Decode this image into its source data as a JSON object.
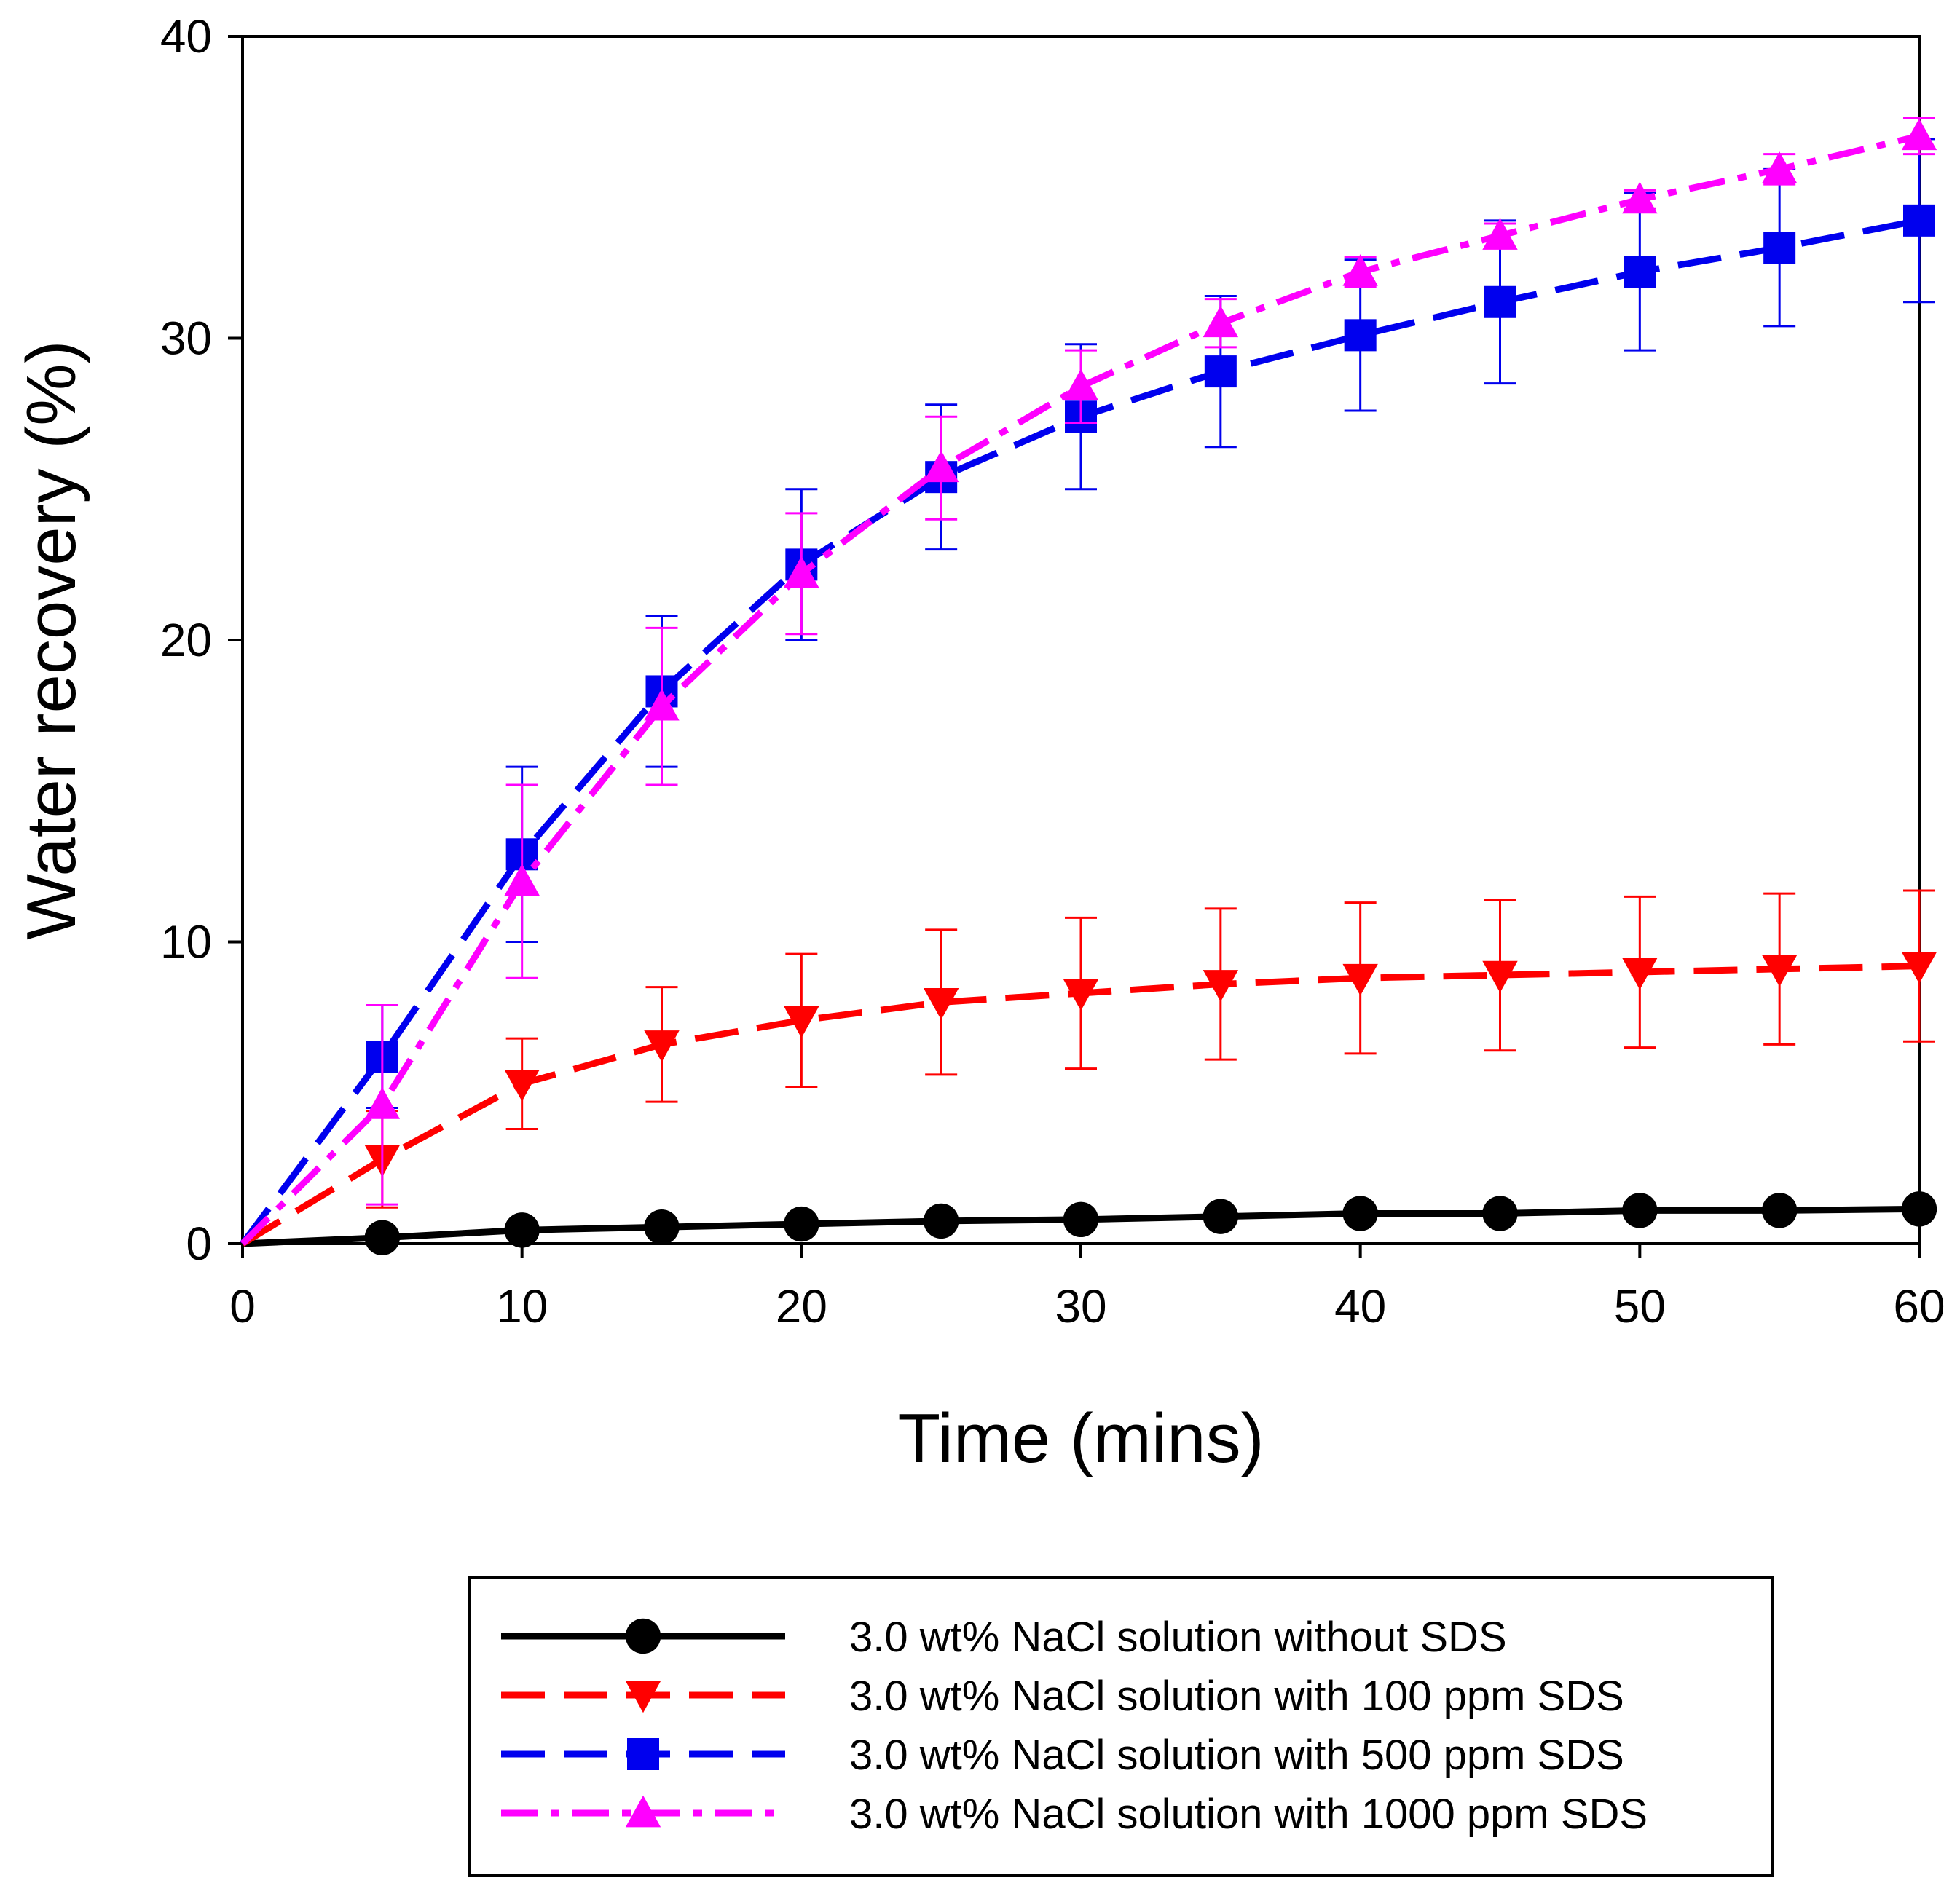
{
  "chart_data": {
    "type": "line",
    "title": "",
    "xlabel": "Time (mins)",
    "ylabel": "Water recovery (%)",
    "xlim": [
      0,
      60
    ],
    "ylim": [
      0,
      40
    ],
    "xticks": [
      0,
      10,
      20,
      30,
      40,
      50,
      60
    ],
    "yticks": [
      0,
      10,
      20,
      30,
      40
    ],
    "grid": false,
    "legend_position": "bottom",
    "x": [
      0,
      5,
      10,
      15,
      20,
      25,
      30,
      35,
      40,
      45,
      50,
      55,
      60
    ],
    "series": [
      {
        "name": "3.0 wt% NaCl solution without SDS",
        "color": "#000000",
        "marker": "circle",
        "line_style": "solid",
        "values": [
          0,
          0.2,
          0.45,
          0.55,
          0.65,
          0.75,
          0.8,
          0.9,
          1.0,
          1.0,
          1.1,
          1.1,
          1.15
        ],
        "errors": null
      },
      {
        "name": "3.0 wt% NaCl solution with 100 ppm SDS",
        "color": "#ff0000",
        "marker": "triangle-down",
        "line_style": "dashed",
        "values": [
          0,
          2.8,
          5.3,
          6.6,
          7.4,
          8.0,
          8.3,
          8.6,
          8.8,
          8.9,
          9.0,
          9.1,
          9.2
        ],
        "errors": [
          0,
          1.6,
          1.5,
          1.9,
          2.2,
          2.4,
          2.5,
          2.5,
          2.5,
          2.5,
          2.5,
          2.5,
          2.5
        ]
      },
      {
        "name": "3.0 wt% NaCl solution with 500 ppm SDS",
        "color": "#0000ee",
        "marker": "square",
        "line_style": "dashed",
        "values": [
          0,
          6.2,
          12.9,
          18.3,
          22.5,
          25.4,
          27.4,
          28.9,
          30.1,
          31.2,
          32.2,
          33.0,
          33.9
        ],
        "errors": [
          0,
          1.7,
          2.9,
          2.5,
          2.5,
          2.4,
          2.4,
          2.5,
          2.5,
          2.7,
          2.6,
          2.6,
          2.7
        ]
      },
      {
        "name": "3.0 wt% NaCl solution with 1000 ppm SDS",
        "color": "#ff00ff",
        "marker": "triangle-up",
        "line_style": "dashdot",
        "values": [
          0,
          4.6,
          12.0,
          17.8,
          22.2,
          25.7,
          28.4,
          30.5,
          32.2,
          33.4,
          34.6,
          35.6,
          36.7
        ],
        "errors": [
          0,
          3.3,
          3.2,
          2.6,
          2.0,
          1.7,
          1.2,
          0.8,
          0.5,
          0.4,
          0.3,
          0.5,
          0.6
        ]
      }
    ]
  }
}
